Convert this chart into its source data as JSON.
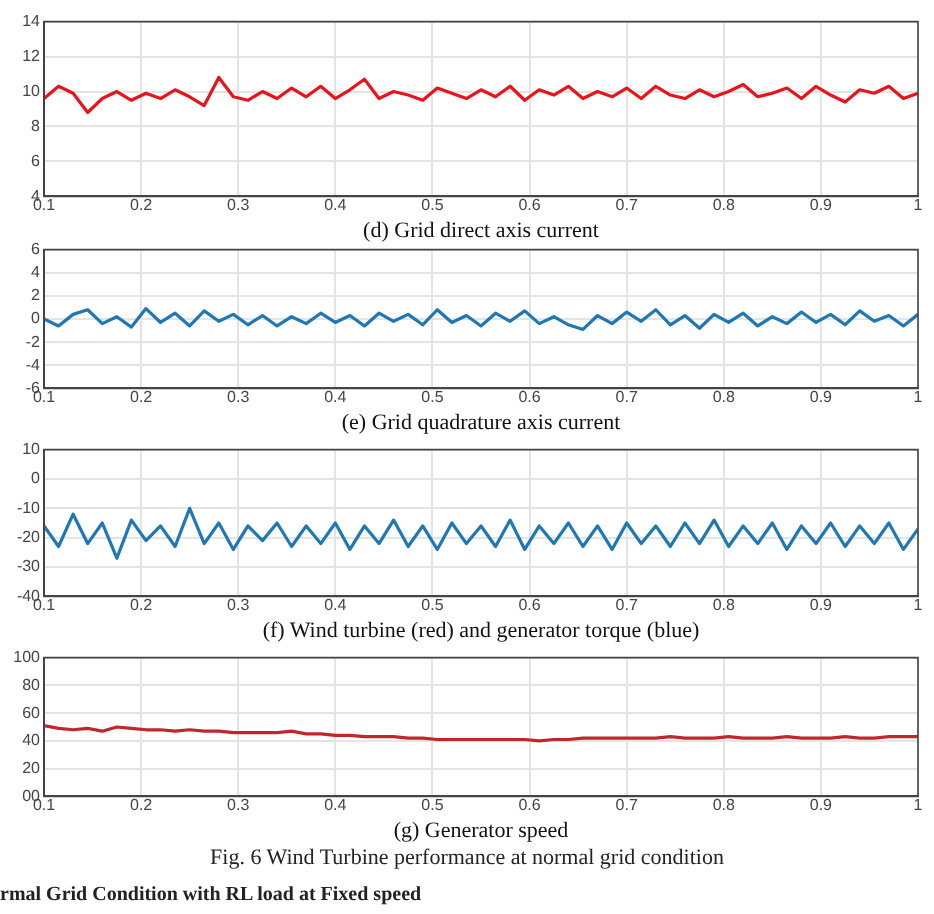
{
  "chart_data": [
    {
      "type": "line",
      "xlabel": "(d) Grid direct axis current",
      "x": [
        0.1,
        0.115,
        0.13,
        0.145,
        0.16,
        0.175,
        0.19,
        0.205,
        0.22,
        0.235,
        0.25,
        0.265,
        0.28,
        0.295,
        0.31,
        0.325,
        0.34,
        0.355,
        0.37,
        0.385,
        0.4,
        0.415,
        0.43,
        0.445,
        0.46,
        0.475,
        0.49,
        0.505,
        0.52,
        0.535,
        0.55,
        0.565,
        0.58,
        0.595,
        0.61,
        0.625,
        0.64,
        0.655,
        0.67,
        0.685,
        0.7,
        0.715,
        0.73,
        0.745,
        0.76,
        0.775,
        0.79,
        0.805,
        0.82,
        0.835,
        0.85,
        0.865,
        0.88,
        0.895,
        0.91,
        0.925,
        0.94,
        0.955,
        0.97,
        0.985,
        1.0
      ],
      "series": [
        {
          "color": "#e8141c",
          "values": [
            9.6,
            10.3,
            9.9,
            8.8,
            9.6,
            10.0,
            9.5,
            9.9,
            9.6,
            10.1,
            9.7,
            9.2,
            10.8,
            9.7,
            9.5,
            10.0,
            9.6,
            10.2,
            9.7,
            10.3,
            9.6,
            10.1,
            10.7,
            9.6,
            10.0,
            9.8,
            9.5,
            10.2,
            9.9,
            9.6,
            10.1,
            9.7,
            10.3,
            9.5,
            10.1,
            9.8,
            10.3,
            9.6,
            10.0,
            9.7,
            10.2,
            9.6,
            10.3,
            9.8,
            9.6,
            10.1,
            9.7,
            10.0,
            10.4,
            9.7,
            9.9,
            10.2,
            9.6,
            10.3,
            9.8,
            9.4,
            10.1,
            9.9,
            10.3,
            9.6,
            9.9
          ]
        }
      ],
      "xlim": [
        0.1,
        1
      ],
      "xticks": [
        0.1,
        0.2,
        0.3,
        0.4,
        0.5,
        0.6,
        0.7,
        0.8,
        0.9,
        1
      ],
      "ylim": [
        4,
        14
      ],
      "yticks": [
        4,
        6,
        8,
        10,
        12,
        14
      ],
      "grid": true,
      "legend": false,
      "marker": "none",
      "line_style": "solid"
    },
    {
      "type": "line",
      "xlabel": "(e) Grid quadrature axis current",
      "x": [
        0.1,
        0.115,
        0.13,
        0.145,
        0.16,
        0.175,
        0.19,
        0.205,
        0.22,
        0.235,
        0.25,
        0.265,
        0.28,
        0.295,
        0.31,
        0.325,
        0.34,
        0.355,
        0.37,
        0.385,
        0.4,
        0.415,
        0.43,
        0.445,
        0.46,
        0.475,
        0.49,
        0.505,
        0.52,
        0.535,
        0.55,
        0.565,
        0.58,
        0.595,
        0.61,
        0.625,
        0.64,
        0.655,
        0.67,
        0.685,
        0.7,
        0.715,
        0.73,
        0.745,
        0.76,
        0.775,
        0.79,
        0.805,
        0.82,
        0.835,
        0.85,
        0.865,
        0.88,
        0.895,
        0.91,
        0.925,
        0.94,
        0.955,
        0.97,
        0.985,
        1.0
      ],
      "series": [
        {
          "color": "#1f77b4",
          "values": [
            0.0,
            -0.6,
            0.4,
            0.8,
            -0.4,
            0.2,
            -0.7,
            0.9,
            -0.3,
            0.5,
            -0.6,
            0.7,
            -0.2,
            0.4,
            -0.5,
            0.3,
            -0.6,
            0.2,
            -0.4,
            0.5,
            -0.3,
            0.3,
            -0.6,
            0.5,
            -0.2,
            0.4,
            -0.5,
            0.8,
            -0.3,
            0.3,
            -0.6,
            0.5,
            -0.2,
            0.7,
            -0.4,
            0.2,
            -0.5,
            -0.9,
            0.3,
            -0.4,
            0.6,
            -0.2,
            0.8,
            -0.5,
            0.3,
            -0.8,
            0.4,
            -0.3,
            0.5,
            -0.6,
            0.2,
            -0.4,
            0.6,
            -0.3,
            0.4,
            -0.5,
            0.7,
            -0.2,
            0.3,
            -0.6,
            0.4
          ]
        }
      ],
      "xlim": [
        0.1,
        1
      ],
      "xticks": [
        0.1,
        0.2,
        0.3,
        0.4,
        0.5,
        0.6,
        0.7,
        0.8,
        0.9,
        1
      ],
      "ylim": [
        -6,
        6
      ],
      "yticks": [
        -6,
        -4,
        -2,
        0,
        2,
        4,
        6
      ],
      "grid": true,
      "legend": false,
      "marker": "none",
      "line_style": "solid"
    },
    {
      "type": "line",
      "xlabel": "(f) Wind turbine (red) and generator torque (blue)",
      "x": [
        0.1,
        0.115,
        0.13,
        0.145,
        0.16,
        0.175,
        0.19,
        0.205,
        0.22,
        0.235,
        0.25,
        0.265,
        0.28,
        0.295,
        0.31,
        0.325,
        0.34,
        0.355,
        0.37,
        0.385,
        0.4,
        0.415,
        0.43,
        0.445,
        0.46,
        0.475,
        0.49,
        0.505,
        0.52,
        0.535,
        0.55,
        0.565,
        0.58,
        0.595,
        0.61,
        0.625,
        0.64,
        0.655,
        0.67,
        0.685,
        0.7,
        0.715,
        0.73,
        0.745,
        0.76,
        0.775,
        0.79,
        0.805,
        0.82,
        0.835,
        0.85,
        0.865,
        0.88,
        0.895,
        0.91,
        0.925,
        0.94,
        0.955,
        0.97,
        0.985,
        1.0
      ],
      "series": [
        {
          "color": "#1f77b4",
          "values": [
            -16,
            -23,
            -12,
            -22,
            -15,
            -27,
            -14,
            -21,
            -16,
            -23,
            -10,
            -22,
            -15,
            -24,
            -16,
            -21,
            -15,
            -23,
            -16,
            -22,
            -15,
            -24,
            -16,
            -22,
            -14,
            -23,
            -16,
            -24,
            -15,
            -22,
            -16,
            -23,
            -14,
            -24,
            -16,
            -22,
            -15,
            -23,
            -16,
            -24,
            -15,
            -22,
            -16,
            -23,
            -15,
            -22,
            -14,
            -23,
            -16,
            -22,
            -15,
            -24,
            -16,
            -22,
            -15,
            -23,
            -16,
            -22,
            -15,
            -24,
            -17
          ]
        }
      ],
      "xlim": [
        0.1,
        1
      ],
      "xticks": [
        0.1,
        0.2,
        0.3,
        0.4,
        0.5,
        0.6,
        0.7,
        0.8,
        0.9,
        1
      ],
      "ylim": [
        -40,
        10
      ],
      "yticks": [
        -40,
        -30,
        -20,
        -10,
        0,
        10
      ],
      "grid": true,
      "legend": false,
      "marker": "none",
      "line_style": "solid"
    },
    {
      "type": "line",
      "xlabel": "(g) Generator speed",
      "x": [
        0.1,
        0.115,
        0.13,
        0.145,
        0.16,
        0.175,
        0.19,
        0.205,
        0.22,
        0.235,
        0.25,
        0.265,
        0.28,
        0.295,
        0.31,
        0.325,
        0.34,
        0.355,
        0.37,
        0.385,
        0.4,
        0.415,
        0.43,
        0.445,
        0.46,
        0.475,
        0.49,
        0.505,
        0.52,
        0.535,
        0.55,
        0.565,
        0.58,
        0.595,
        0.61,
        0.625,
        0.64,
        0.655,
        0.67,
        0.685,
        0.7,
        0.715,
        0.73,
        0.745,
        0.76,
        0.775,
        0.79,
        0.805,
        0.82,
        0.835,
        0.85,
        0.865,
        0.88,
        0.895,
        0.91,
        0.925,
        0.94,
        0.955,
        0.97,
        0.985,
        1.0
      ],
      "series": [
        {
          "color": "#c0272d",
          "values": [
            51,
            49,
            48,
            49,
            47,
            50,
            49,
            48,
            48,
            47,
            48,
            47,
            47,
            46,
            46,
            46,
            46,
            47,
            45,
            45,
            44,
            44,
            43,
            43,
            43,
            42,
            42,
            41,
            41,
            41,
            41,
            41,
            41,
            41,
            40,
            41,
            41,
            42,
            42,
            42,
            42,
            42,
            42,
            43,
            42,
            42,
            42,
            43,
            42,
            42,
            42,
            43,
            42,
            42,
            42,
            43,
            42,
            42,
            43,
            43,
            43
          ]
        }
      ],
      "xlim": [
        0.1,
        1
      ],
      "xticks": [
        0.1,
        0.2,
        0.3,
        0.4,
        0.5,
        0.6,
        0.7,
        0.8,
        0.9,
        1
      ],
      "ylim": [
        0,
        100
      ],
      "yticks": [
        {
          "value": 0,
          "label": "00"
        },
        20,
        40,
        60,
        80,
        100
      ],
      "grid": true,
      "legend": false,
      "marker": "none",
      "line_style": "solid",
      "annotations": [
        "Fig. 6 Wind Turbine performance at normal grid condition",
        "rmal Grid Condition with RL load at Fixed speed"
      ]
    }
  ]
}
